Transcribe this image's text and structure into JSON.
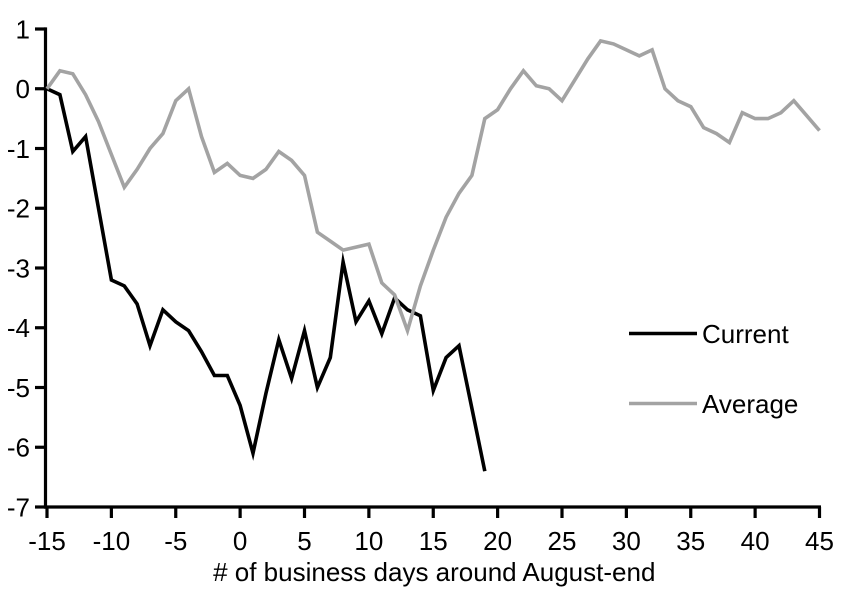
{
  "chart_data": {
    "type": "line",
    "title": "",
    "xlabel": "# of business days around August-end",
    "ylabel": "",
    "xlim": [
      -15,
      45
    ],
    "ylim": [
      -7,
      1
    ],
    "x_ticks": [
      -15,
      -10,
      -5,
      0,
      5,
      10,
      15,
      20,
      25,
      30,
      35,
      40,
      45
    ],
    "y_ticks": [
      1,
      0,
      -1,
      -2,
      -3,
      -4,
      -5,
      -6,
      -7
    ],
    "grid": false,
    "legend_position": "right-middle",
    "axis_color": "#000000",
    "background_color": "#ffffff",
    "series": [
      {
        "name": "Current",
        "color": "#000000",
        "x": [
          -15,
          -14,
          -13,
          -12,
          -11,
          -10,
          -9,
          -8,
          -7,
          -6,
          -5,
          -4,
          -3,
          -2,
          -1,
          0,
          1,
          2,
          3,
          4,
          5,
          6,
          7,
          8,
          9,
          10,
          11,
          12,
          13,
          14,
          15,
          16,
          17,
          18,
          19
        ],
        "values": [
          0,
          -0.1,
          -1.05,
          -0.8,
          -2.0,
          -3.2,
          -3.3,
          -3.6,
          -4.3,
          -3.7,
          -3.9,
          -4.05,
          -4.4,
          -4.8,
          -4.8,
          -5.3,
          -6.1,
          -5.1,
          -4.2,
          -4.85,
          -4.05,
          -5.0,
          -4.5,
          -2.9,
          -3.9,
          -3.55,
          -4.1,
          -3.5,
          -3.7,
          -3.8,
          -5.05,
          -4.5,
          -4.3,
          -5.35,
          -6.4
        ]
      },
      {
        "name": "Average",
        "color": "#a3a3a3",
        "x": [
          -15,
          -14,
          -13,
          -12,
          -11,
          -10,
          -9,
          -8,
          -7,
          -6,
          -5,
          -4,
          -3,
          -2,
          -1,
          0,
          1,
          2,
          3,
          4,
          5,
          6,
          7,
          8,
          9,
          10,
          11,
          12,
          13,
          14,
          15,
          16,
          17,
          18,
          19,
          20,
          21,
          22,
          23,
          24,
          25,
          26,
          27,
          28,
          29,
          30,
          31,
          32,
          33,
          34,
          35,
          36,
          37,
          38,
          39,
          40,
          41,
          42,
          43,
          44,
          45
        ],
        "values": [
          0,
          0.3,
          0.25,
          -0.1,
          -0.55,
          -1.1,
          -1.65,
          -1.35,
          -1.0,
          -0.75,
          -0.2,
          0.0,
          -0.8,
          -1.4,
          -1.25,
          -1.45,
          -1.5,
          -1.35,
          -1.05,
          -1.2,
          -1.45,
          -2.4,
          -2.55,
          -2.7,
          -2.65,
          -2.6,
          -3.25,
          -3.45,
          -4.05,
          -3.3,
          -2.7,
          -2.15,
          -1.75,
          -1.45,
          -0.5,
          -0.35,
          0.0,
          0.3,
          0.05,
          0.0,
          -0.2,
          0.15,
          0.5,
          0.8,
          0.75,
          0.65,
          0.55,
          0.65,
          0.0,
          -0.2,
          -0.3,
          -0.65,
          -0.75,
          -0.9,
          -0.4,
          -0.5,
          -0.5,
          -0.4,
          -0.2,
          -0.45,
          -0.7
        ]
      }
    ]
  }
}
